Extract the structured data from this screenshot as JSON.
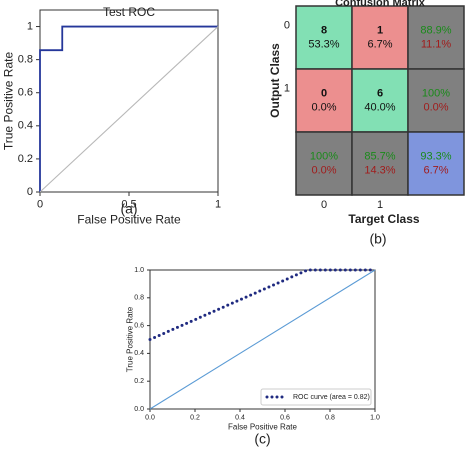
{
  "chart_data": [
    {
      "type": "line",
      "title": "Test ROC",
      "xlabel": "False Positive Rate",
      "ylabel": "True Positive Rate",
      "caption": "(a)",
      "xlim": [
        0,
        1
      ],
      "ylim": [
        0,
        1.1
      ],
      "xticks": [
        0,
        0.5,
        1
      ],
      "yticks": [
        0,
        0.2,
        0.4,
        0.6,
        0.8,
        1
      ],
      "series": [
        {
          "color": "#25379a",
          "x": [
            0,
            0,
            0.125,
            0.125,
            1
          ],
          "values": [
            0,
            0.857,
            0.857,
            1,
            1
          ]
        },
        {
          "color": "#b8b8b8",
          "x": [
            0,
            1
          ],
          "values": [
            0,
            1
          ]
        }
      ]
    },
    {
      "type": "confusion",
      "title": "Confusion Matrix",
      "xlabel": "Target Class",
      "ylabel": "Output Class",
      "caption": "(b)",
      "categories": [
        "0",
        "1"
      ],
      "values": [
        [
          8,
          1
        ],
        [
          0,
          6
        ]
      ],
      "percents": [
        [
          53.3,
          6.7
        ],
        [
          0,
          40
        ]
      ],
      "percent_labels": [
        [
          "53.3%",
          "6.7%"
        ],
        [
          "0.0%",
          "40.0%"
        ]
      ],
      "row_correct": [
        88.9,
        100
      ],
      "row_correct_labels": [
        "88.9%",
        "100%"
      ],
      "row_error": [
        11.1,
        0
      ],
      "row_error_labels": [
        "11.1%",
        "0.0%"
      ],
      "col_correct": [
        100,
        85.7
      ],
      "col_correct_labels": [
        "100%",
        "85.7%"
      ],
      "col_error": [
        0,
        14.3
      ],
      "col_error_labels": [
        "0.0%",
        "14.3%"
      ],
      "overall": [
        93.3,
        6.7
      ],
      "overall_labels": [
        "93.3%",
        "6.7%"
      ],
      "colors": {
        "correct": "#82e0b4",
        "wrong": "#ec8f8f",
        "summary": "#808080",
        "overall": "#7f95dd",
        "good_text": "#1a8a1a",
        "bad_text": "#a01c1c"
      }
    },
    {
      "type": "line",
      "xlabel": "False Positive Rate",
      "ylabel": "True Positive Rate",
      "caption": "(c)",
      "legend": "lower right",
      "xlim": [
        0,
        1
      ],
      "ylim": [
        0,
        1
      ],
      "xticks": [
        {
          "value": 0,
          "label": "0.0"
        },
        0.2,
        0.4,
        0.6,
        0.8,
        {
          "value": 1,
          "label": "1.0"
        }
      ],
      "yticks": [
        {
          "value": 0,
          "label": "0.0"
        },
        0.2,
        0.4,
        0.6,
        0.8,
        {
          "value": 1,
          "label": "1.0"
        }
      ],
      "series": [
        {
          "name": "ROC curve (area = 0.82)",
          "color": "#1f2a80",
          "dash": "dotted",
          "x": [
            0,
            0.7,
            1
          ],
          "values": [
            0.5,
            1,
            1
          ]
        },
        {
          "color": "#5b9bd5",
          "x": [
            0,
            1
          ],
          "values": [
            0,
            1
          ]
        }
      ]
    }
  ]
}
